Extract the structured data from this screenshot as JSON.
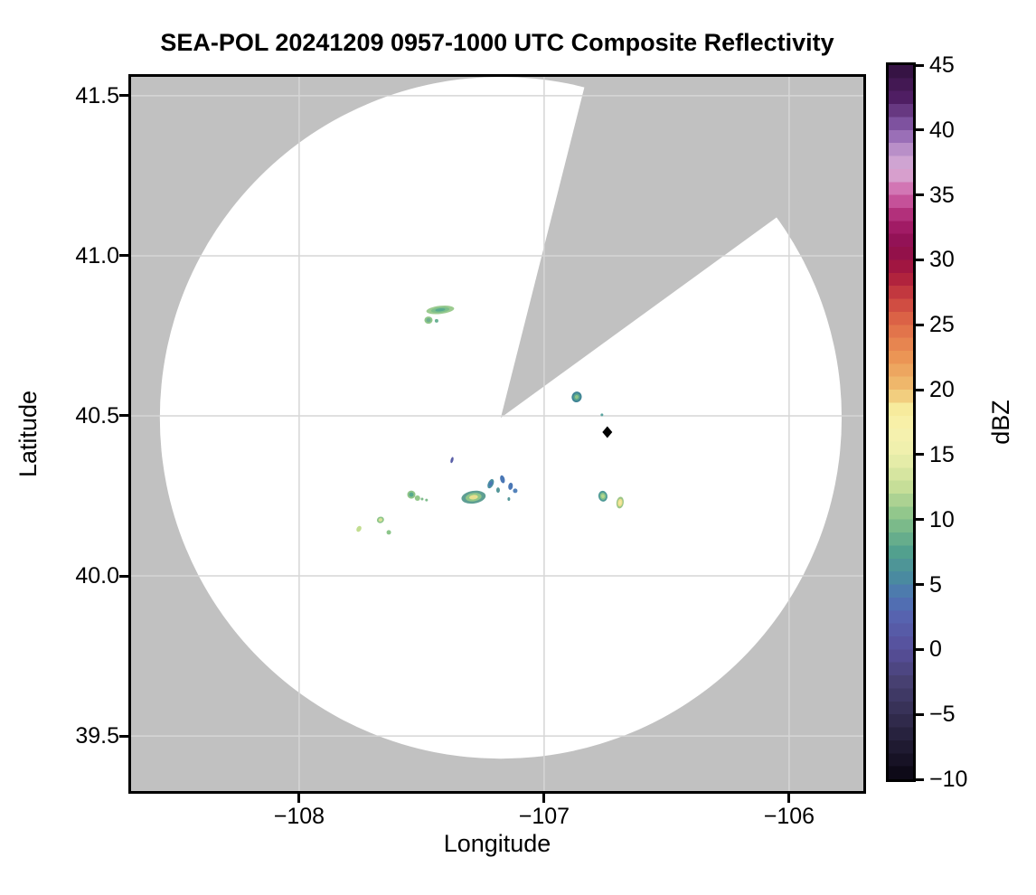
{
  "title": "SEA-POL 20241209 0957-1000 UTC Composite Reflectivity",
  "axes": {
    "xlabel": "Longitude",
    "ylabel": "Latitude",
    "xlim": [
      -108.686,
      -105.697
    ],
    "ylim": [
      39.328,
      41.559
    ],
    "x_ticks": [
      {
        "value": -108,
        "label": "−108"
      },
      {
        "value": -107,
        "label": "−107"
      },
      {
        "value": -106,
        "label": "−106"
      }
    ],
    "y_ticks": [
      {
        "value": 41.5,
        "label": "41.5"
      },
      {
        "value": 41.0,
        "label": "41.0"
      },
      {
        "value": 40.5,
        "label": "40.5"
      },
      {
        "value": 40.0,
        "label": "40.0"
      },
      {
        "value": 39.5,
        "label": "39.5"
      }
    ]
  },
  "colorbar": {
    "label": "dBZ",
    "vmin": -10,
    "vmax": 45,
    "band_step_dbz": 1,
    "ticks": [
      {
        "value": 45,
        "label": "45"
      },
      {
        "value": 40,
        "label": "40"
      },
      {
        "value": 35,
        "label": "35"
      },
      {
        "value": 30,
        "label": "30"
      },
      {
        "value": 25,
        "label": "25"
      },
      {
        "value": 20,
        "label": "20"
      },
      {
        "value": 15,
        "label": "15"
      },
      {
        "value": 10,
        "label": "10"
      },
      {
        "value": 5,
        "label": "5"
      },
      {
        "value": 0,
        "label": "0"
      },
      {
        "value": -5,
        "label": "−5"
      },
      {
        "value": -10,
        "label": "−10"
      }
    ],
    "anchors": [
      [
        -10,
        "#0a0612"
      ],
      [
        -7.5,
        "#1f1a31"
      ],
      [
        -5,
        "#342e52"
      ],
      [
        -2.5,
        "#474071"
      ],
      [
        0,
        "#574f9b"
      ],
      [
        2.5,
        "#5763af"
      ],
      [
        4,
        "#4e74b4"
      ],
      [
        5.5,
        "#4a8aa0"
      ],
      [
        7.5,
        "#52a08e"
      ],
      [
        10,
        "#85c189"
      ],
      [
        12.5,
        "#c6de98"
      ],
      [
        15,
        "#edefac"
      ],
      [
        17,
        "#f8f2ae"
      ],
      [
        18.5,
        "#f7eb9d"
      ],
      [
        20,
        "#f0c070"
      ],
      [
        22.5,
        "#eb9555"
      ],
      [
        25,
        "#e06c48"
      ],
      [
        27,
        "#cb4340"
      ],
      [
        29,
        "#a8183c"
      ],
      [
        31,
        "#8c0e4e"
      ],
      [
        33,
        "#a81f6c"
      ],
      [
        35,
        "#cf62a8"
      ],
      [
        36.8,
        "#d8abd4"
      ],
      [
        38,
        "#c89fd1"
      ],
      [
        40,
        "#8a5fae"
      ],
      [
        42.5,
        "#4f1e63"
      ],
      [
        45,
        "#30103c"
      ]
    ]
  },
  "map_colors": {
    "no_data_gray": "#c1c1c1",
    "coverage_white": "#ffffff",
    "grid": "#d6d6d6",
    "spine": "#000000",
    "marker_black": "#000000"
  },
  "chart_data": {
    "type": "heatmap",
    "title": "SEA-POL 20241209 0957-1000 UTC Composite Reflectivity",
    "xlabel": "Longitude",
    "ylabel": "Latitude",
    "xlim": [
      -108.686,
      -105.697
    ],
    "ylim": [
      39.328,
      41.559
    ],
    "grid": true,
    "colorbar_label": "dBZ",
    "colorbar_range": [
      -10,
      45
    ],
    "colorbar_tick_step": 5,
    "radar_center_lonlat": [
      -107.177,
      40.494
    ],
    "radar_range_deg_lat": 1.065,
    "no_data_sector_bearings_deg": [
      14.2,
      54.0
    ],
    "site_marker_lonlat": [
      -106.742,
      40.449
    ],
    "echoes": [
      {
        "lon": -107.424,
        "lat": 40.831,
        "w": 31,
        "h": 9,
        "rot": -6,
        "dbz": 12,
        "colors": [
          "#9ccb90",
          "#7cbf8a",
          "#58a98f"
        ]
      },
      {
        "lon": -107.472,
        "lat": 40.799,
        "w": 9,
        "h": 8,
        "rot": 0,
        "dbz": 10,
        "colors": [
          "#8fc688",
          "#6fb08f"
        ]
      },
      {
        "lon": -107.439,
        "lat": 40.797,
        "w": 4,
        "h": 4,
        "rot": 0,
        "dbz": 8,
        "colors": [
          "#6ab294"
        ]
      },
      {
        "lon": -106.867,
        "lat": 40.559,
        "w": 11,
        "h": 12,
        "rot": 20,
        "dbz": 10,
        "colors": [
          "#3f8495",
          "#58a48f",
          "#8fc487"
        ]
      },
      {
        "lon": -106.764,
        "lat": 40.503,
        "w": 3,
        "h": 3,
        "rot": 0,
        "dbz": 8,
        "colors": [
          "#5ba4a0"
        ]
      },
      {
        "lon": -107.376,
        "lat": 40.362,
        "w": 3,
        "h": 7,
        "rot": 15,
        "dbz": 2,
        "colors": [
          "#5a5fa8"
        ]
      },
      {
        "lon": -107.218,
        "lat": 40.288,
        "w": 6,
        "h": 11,
        "rot": 25,
        "dbz": 6,
        "colors": [
          "#4b8fa0",
          "#4a77b5"
        ]
      },
      {
        "lon": -107.17,
        "lat": 40.302,
        "w": 5,
        "h": 9,
        "rot": -15,
        "dbz": 5,
        "colors": [
          "#4a77b5"
        ]
      },
      {
        "lon": -107.137,
        "lat": 40.28,
        "w": 5,
        "h": 8,
        "rot": 10,
        "dbz": 5,
        "colors": [
          "#4a77b5"
        ]
      },
      {
        "lon": -107.188,
        "lat": 40.268,
        "w": 4,
        "h": 6,
        "rot": 0,
        "dbz": 7,
        "colors": [
          "#56989a"
        ]
      },
      {
        "lon": -107.118,
        "lat": 40.266,
        "w": 5,
        "h": 5,
        "rot": 0,
        "dbz": 5,
        "colors": [
          "#5583bb"
        ]
      },
      {
        "lon": -107.144,
        "lat": 40.24,
        "w": 3,
        "h": 4,
        "rot": 0,
        "dbz": 7,
        "colors": [
          "#56989a"
        ]
      },
      {
        "lon": -107.288,
        "lat": 40.246,
        "w": 27,
        "h": 14,
        "rot": -8,
        "dbz": 17,
        "colors": [
          "#5e9e93",
          "#90c688",
          "#e8e08f"
        ]
      },
      {
        "lon": -107.542,
        "lat": 40.254,
        "w": 9,
        "h": 9,
        "rot": 0,
        "dbz": 10,
        "colors": [
          "#8fc487",
          "#58a98f"
        ]
      },
      {
        "lon": -107.517,
        "lat": 40.243,
        "w": 6,
        "h": 6,
        "rot": 0,
        "dbz": 12,
        "colors": [
          "#94c88a"
        ]
      },
      {
        "lon": -107.498,
        "lat": 40.24,
        "w": 3,
        "h": 3,
        "rot": 0,
        "dbz": 11,
        "colors": [
          "#7fbc8c"
        ]
      },
      {
        "lon": -107.48,
        "lat": 40.237,
        "w": 3,
        "h": 3,
        "rot": 0,
        "dbz": 11,
        "colors": [
          "#7fbc8c"
        ]
      },
      {
        "lon": -106.76,
        "lat": 40.249,
        "w": 10,
        "h": 12,
        "rot": -10,
        "dbz": 12,
        "colors": [
          "#4f9a96",
          "#86c38a",
          "#b5d68e"
        ]
      },
      {
        "lon": -106.69,
        "lat": 40.229,
        "w": 8,
        "h": 13,
        "rot": 8,
        "dbz": 17,
        "colors": [
          "#9cc687",
          "#eede8d",
          "#f2ea9e"
        ]
      },
      {
        "lon": -107.668,
        "lat": 40.175,
        "w": 8,
        "h": 7,
        "rot": -20,
        "dbz": 14,
        "colors": [
          "#8cc58a",
          "#d8e39a"
        ]
      },
      {
        "lon": -107.756,
        "lat": 40.147,
        "w": 5,
        "h": 7,
        "rot": 30,
        "dbz": 15,
        "colors": [
          "#c2dd90"
        ]
      },
      {
        "lon": -107.634,
        "lat": 40.136,
        "w": 5,
        "h": 5,
        "rot": 0,
        "dbz": 12,
        "colors": [
          "#8cc58a"
        ]
      }
    ]
  }
}
